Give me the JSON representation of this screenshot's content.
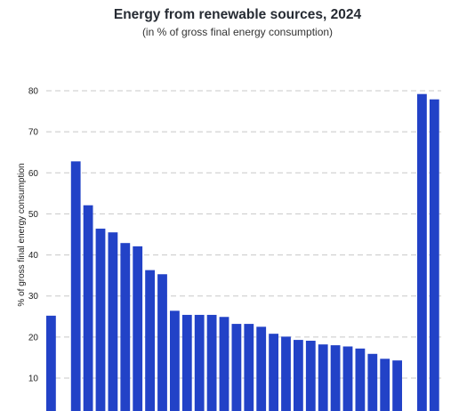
{
  "chart_data": {
    "type": "bar",
    "title": "Energy from renewable sources, 2024",
    "subtitle": "(in % of gross final energy consumption)",
    "xlabel": "",
    "ylabel": "% of gross final energy consumption",
    "ylim": [
      0,
      80
    ],
    "yticks": [
      10,
      20,
      30,
      40,
      50,
      60,
      70,
      80
    ],
    "grid": true,
    "bar_color": "#2242c7",
    "grid_color": "#c8c8c8",
    "values": [
      25.2,
      null,
      62.8,
      52.1,
      46.4,
      45.5,
      42.9,
      42.1,
      36.3,
      35.3,
      26.4,
      25.4,
      25.4,
      25.4,
      24.9,
      23.2,
      23.2,
      22.5,
      20.8,
      20.1,
      19.3,
      19.1,
      18.2,
      18.0,
      17.7,
      17.2,
      15.9,
      14.7,
      14.3,
      null,
      79.2,
      77.9
    ]
  }
}
